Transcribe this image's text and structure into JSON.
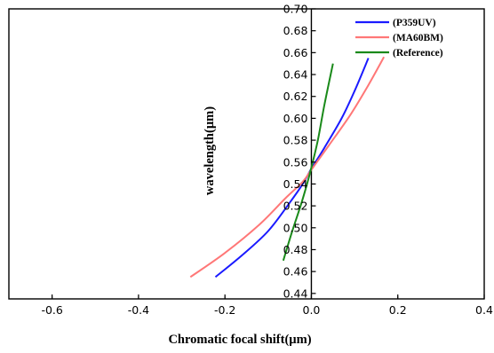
{
  "chart_data": {
    "type": "line",
    "title": "",
    "xlabel": "Chromatic focal shift(µm)",
    "ylabel": "wavelength(µm)",
    "xlim": [
      -0.7,
      0.4
    ],
    "ylim": [
      0.435,
      0.7
    ],
    "xticks": [
      -0.6,
      -0.4,
      -0.2,
      0.0,
      0.2,
      0.4
    ],
    "xtick_labels": [
      "-0.6",
      "-0.4",
      "-0.2",
      "0.0",
      "0.2",
      "0.4"
    ],
    "yticks": [
      0.44,
      0.46,
      0.48,
      0.5,
      0.52,
      0.54,
      0.56,
      0.58,
      0.6,
      0.62,
      0.64,
      0.66,
      0.68,
      0.7
    ],
    "ytick_labels": [
      "0.44",
      "0.46",
      "0.48",
      "0.50",
      "0.52",
      "0.54",
      "0.56",
      "0.58",
      "0.60",
      "0.62",
      "0.64",
      "0.66",
      "0.68",
      "0.70"
    ],
    "grid": false,
    "legend_position": "top-right",
    "series": [
      {
        "name": "(P359UV)",
        "color": "#1a1aff",
        "points": [
          [
            -0.222,
            0.455
          ],
          [
            -0.16,
            0.475
          ],
          [
            -0.1,
            0.497
          ],
          [
            -0.05,
            0.523
          ],
          [
            -0.02,
            0.54
          ],
          [
            0.0,
            0.554
          ],
          [
            0.03,
            0.573
          ],
          [
            0.07,
            0.6
          ],
          [
            0.1,
            0.625
          ],
          [
            0.132,
            0.655
          ]
        ]
      },
      {
        "name": "(MA60BM)",
        "color": "#ff7777",
        "points": [
          [
            -0.28,
            0.455
          ],
          [
            -0.2,
            0.477
          ],
          [
            -0.12,
            0.503
          ],
          [
            -0.06,
            0.527
          ],
          [
            -0.02,
            0.542
          ],
          [
            0.0,
            0.553
          ],
          [
            0.04,
            0.575
          ],
          [
            0.09,
            0.603
          ],
          [
            0.13,
            0.629
          ],
          [
            0.168,
            0.656
          ]
        ]
      },
      {
        "name": "(Reference)",
        "color": "#1a8a1a",
        "points": [
          [
            -0.065,
            0.47
          ],
          [
            -0.045,
            0.496
          ],
          [
            -0.025,
            0.52
          ],
          [
            -0.01,
            0.54
          ],
          [
            0.0,
            0.555
          ],
          [
            0.015,
            0.58
          ],
          [
            0.03,
            0.612
          ],
          [
            0.05,
            0.65
          ]
        ]
      }
    ]
  }
}
